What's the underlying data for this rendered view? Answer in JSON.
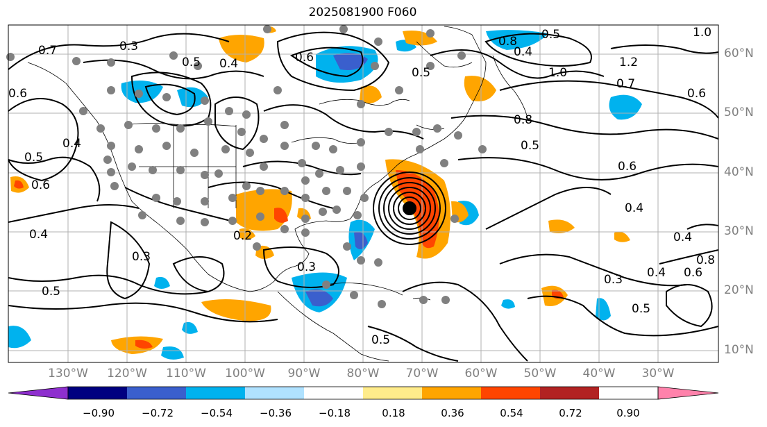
{
  "title": "2025081900 F060",
  "lat_labels": [
    "60°N",
    "50°N",
    "40°N",
    "30°N",
    "20°N",
    "10°N"
  ],
  "lon_labels": [
    "130°W",
    "120°W",
    "110°W",
    "100°W",
    "90°W",
    "80°W",
    "70°W",
    "60°W",
    "50°W",
    "40°W",
    "30°W"
  ],
  "colorbar": {
    "labels": [
      "−0.90",
      "−0.72",
      "−0.54",
      "−0.36",
      "−0.18",
      "0.18",
      "0.36",
      "0.54",
      "0.72",
      "0.90"
    ],
    "colors": [
      "#8e2fce",
      "#000080",
      "#3a5fcd",
      "#00b2ee",
      "#b0e2ff",
      "#ffffff",
      "#ffec8b",
      "#ffa500",
      "#ff4500",
      "#b22222",
      "#ff82ab"
    ]
  },
  "contour_labels": [
    {
      "text": "0.3"
    },
    {
      "text": "0.7"
    },
    {
      "text": "0.5"
    },
    {
      "text": "0.4"
    },
    {
      "text": "0.6"
    },
    {
      "text": "0.5"
    },
    {
      "text": "0.4"
    },
    {
      "text": "0.5"
    },
    {
      "text": "0.6"
    },
    {
      "text": "0.4"
    },
    {
      "text": "0.3"
    },
    {
      "text": "0.5"
    },
    {
      "text": "0.2"
    },
    {
      "text": "0.3"
    },
    {
      "text": "0.8"
    },
    {
      "text": "1.2"
    },
    {
      "text": "0.7"
    },
    {
      "text": "1.0"
    },
    {
      "text": "0.6"
    },
    {
      "text": "0.8"
    },
    {
      "text": "0.5"
    },
    {
      "text": "0.6"
    },
    {
      "text": "0.4"
    },
    {
      "text": "0.4"
    },
    {
      "text": "0.8"
    },
    {
      "text": "0.6"
    },
    {
      "text": "0.4"
    },
    {
      "text": "0.3"
    },
    {
      "text": "0.5"
    },
    {
      "text": "1.0"
    },
    {
      "text": "0.4"
    },
    {
      "text": "0.5"
    },
    {
      "text": "0.5"
    },
    {
      "text": "0.6"
    }
  ],
  "colors": {
    "land_outline": "#000000",
    "grid": "#b0b0b0",
    "station": "#808080"
  }
}
